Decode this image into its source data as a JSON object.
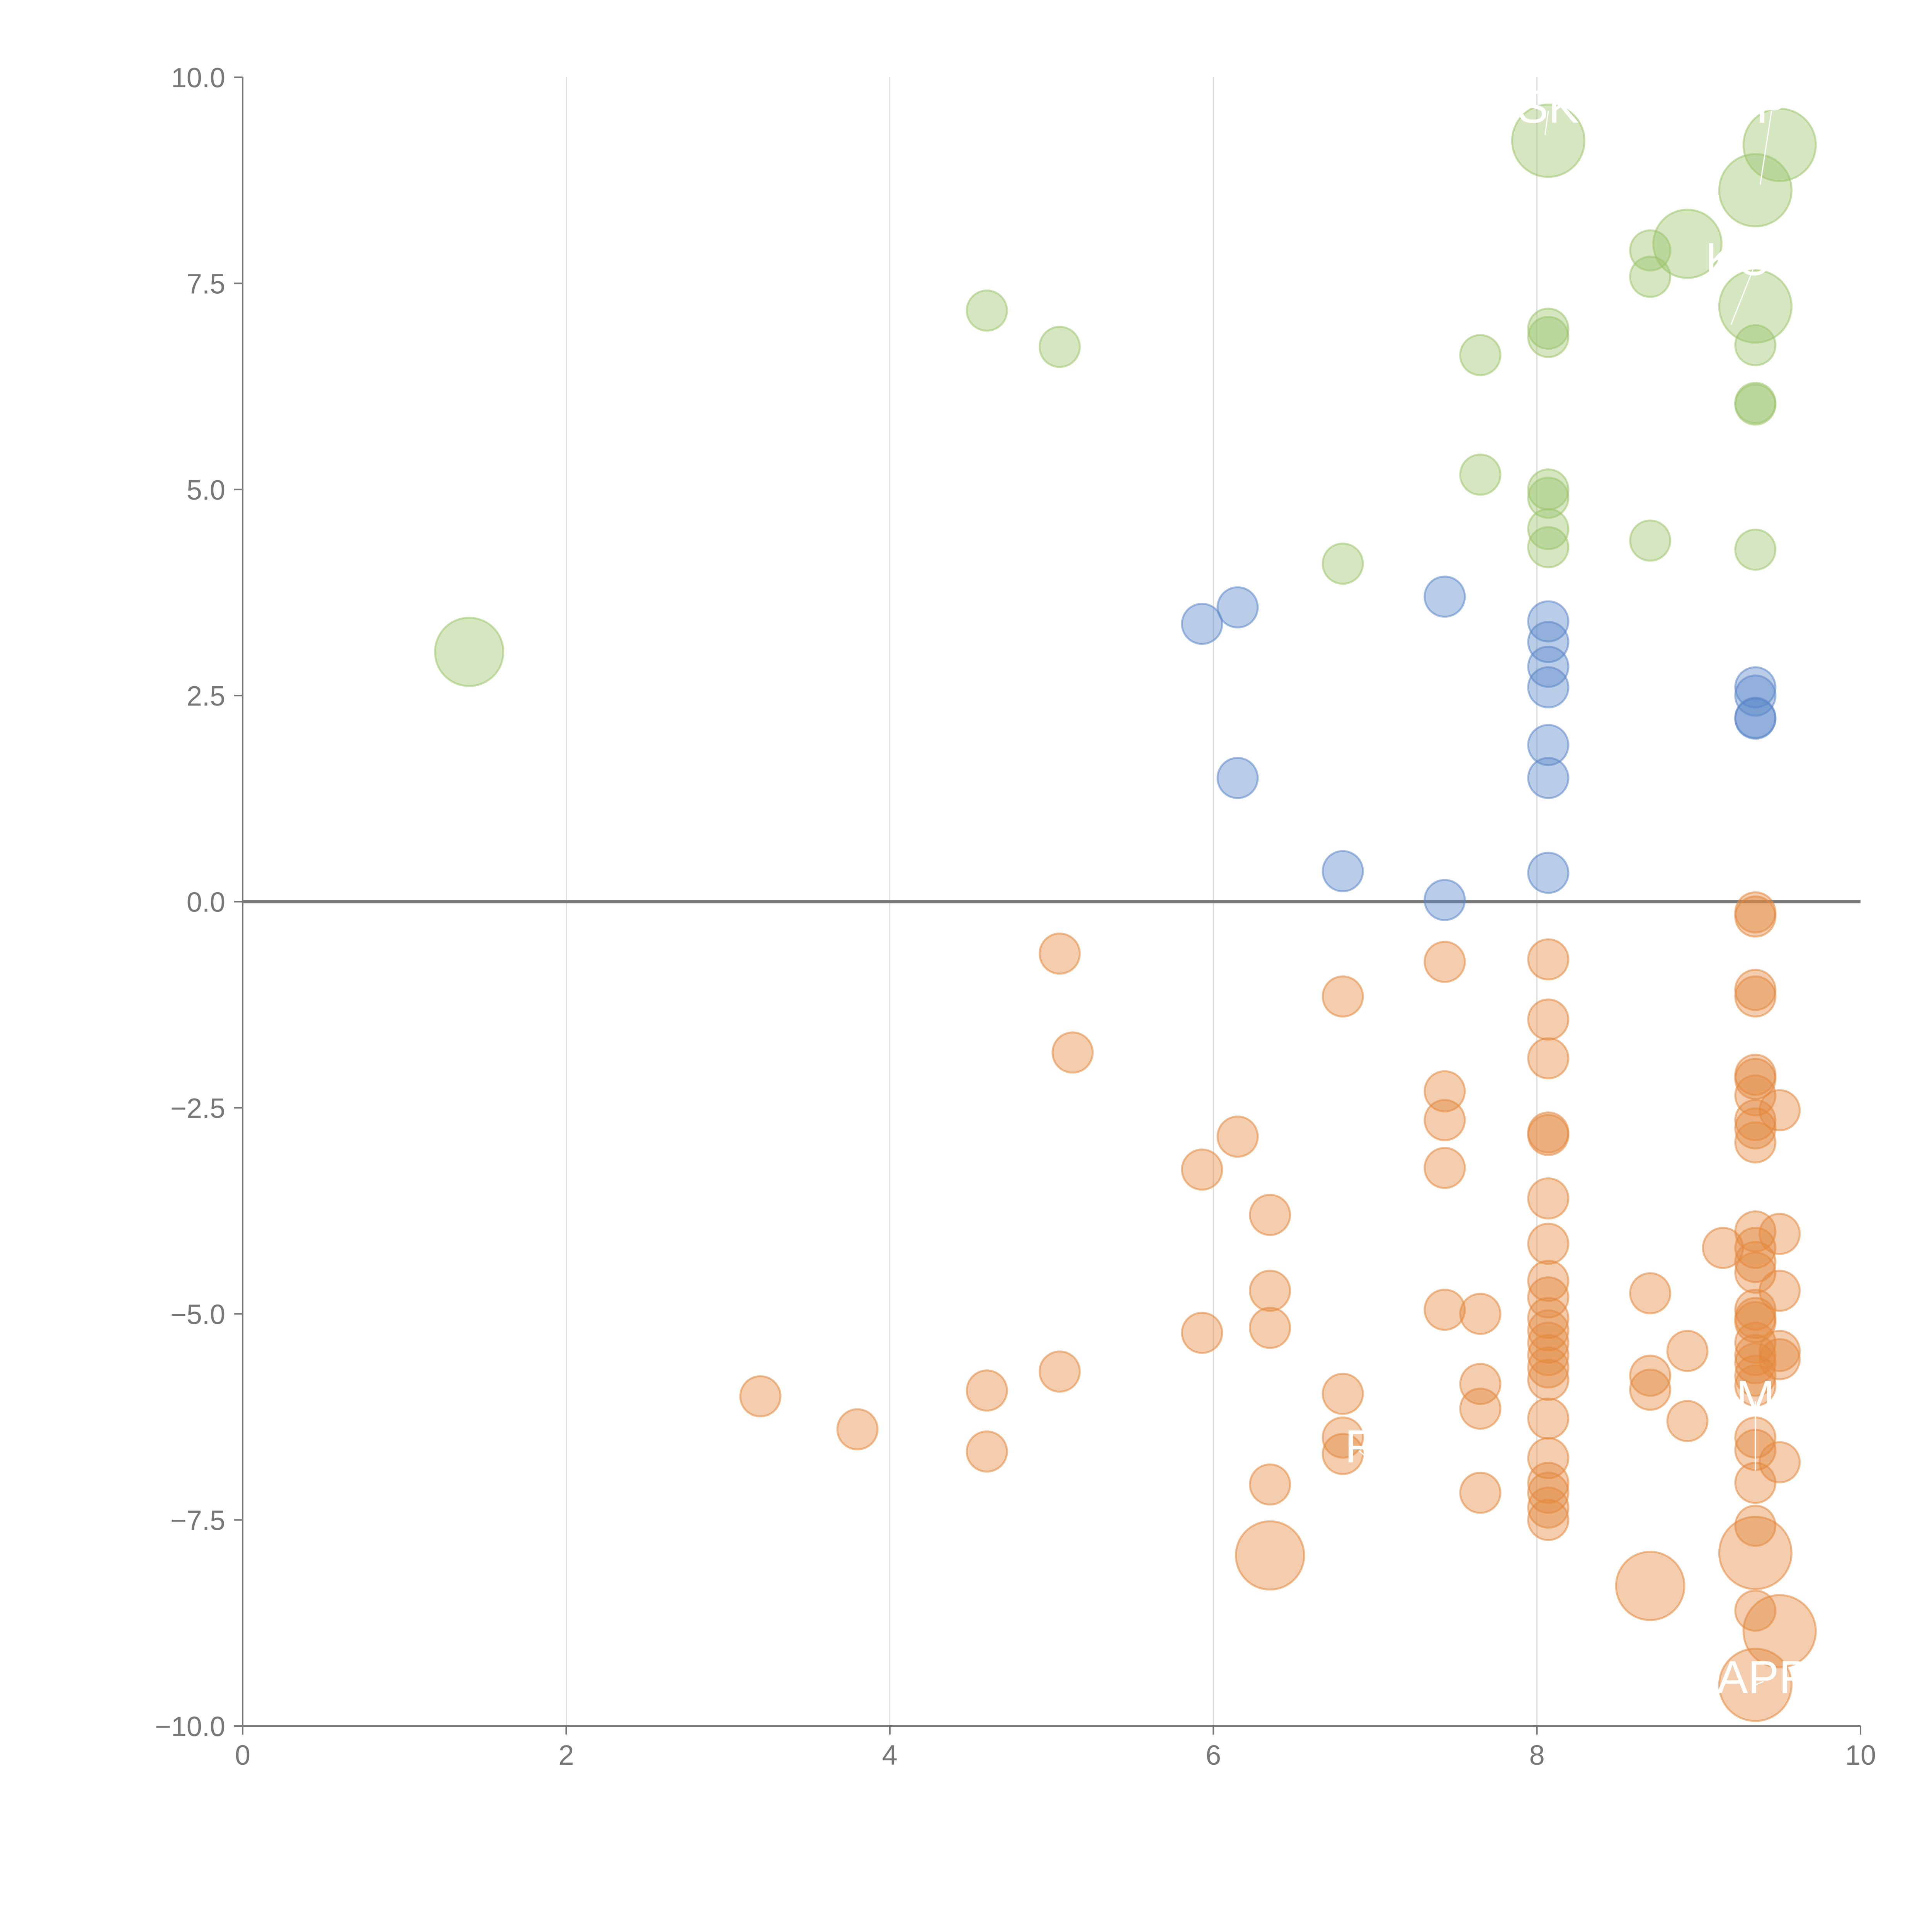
{
  "chart_data": {
    "type": "scatter",
    "title": "",
    "xlabel": "",
    "ylabel": "",
    "xlim": [
      0,
      10
    ],
    "ylim": [
      -10,
      10
    ],
    "x_ticks": [
      0,
      2,
      4,
      6,
      8,
      10
    ],
    "y_ticks": [
      10,
      7.5,
      5,
      2.5,
      0,
      -2.5,
      -5,
      -7.5,
      -10
    ],
    "x_tick_labels": [
      "0",
      "2",
      "4",
      "6",
      "8",
      "10"
    ],
    "y_tick_labels": [
      "10.0",
      "7.5",
      "5.0",
      "2.5",
      "0.0",
      "−2.5",
      "−5.0",
      "−7.5",
      "−10.0"
    ],
    "grid": "vertical lines at x ticks",
    "reference_line": {
      "y": 0
    },
    "colors": {
      "green": "#9cc46b",
      "blue": "#5b87c8",
      "orange": "#e3883e",
      "axis": "#777777",
      "grid": "#dddddd"
    },
    "series": [
      {
        "name": "green",
        "color": "#9cc46b",
        "points": [
          [
            1.4,
            3.03,
            1.7
          ],
          [
            4.6,
            7.17,
            1
          ],
          [
            5.05,
            6.73,
            1
          ],
          [
            6.8,
            4.1,
            1
          ],
          [
            7.65,
            6.63,
            1
          ],
          [
            7.65,
            5.18,
            1
          ],
          [
            8.07,
            9.23,
            1.8
          ],
          [
            8.07,
            6.95,
            1
          ],
          [
            8.07,
            6.85,
            1
          ],
          [
            8.07,
            5.0,
            1
          ],
          [
            8.07,
            4.9,
            1
          ],
          [
            8.07,
            4.52,
            1
          ],
          [
            8.07,
            4.3,
            1
          ],
          [
            8.7,
            7.9,
            1
          ],
          [
            8.7,
            7.58,
            1
          ],
          [
            8.7,
            4.38,
            1
          ],
          [
            8.93,
            7.98,
            1.7
          ],
          [
            9.35,
            8.63,
            1.8
          ],
          [
            9.35,
            7.22,
            1.8
          ],
          [
            9.35,
            6.75,
            1
          ],
          [
            9.35,
            6.05,
            1
          ],
          [
            9.35,
            6.03,
            1
          ],
          [
            9.35,
            4.27,
            1
          ],
          [
            9.5,
            9.18,
            1.8
          ]
        ]
      },
      {
        "name": "blue",
        "color": "#5b87c8",
        "points": [
          [
            5.93,
            3.37,
            1
          ],
          [
            6.15,
            3.57,
            1
          ],
          [
            6.15,
            1.5,
            1
          ],
          [
            6.8,
            0.37,
            1
          ],
          [
            7.43,
            3.7,
            1
          ],
          [
            7.43,
            0.02,
            1
          ],
          [
            8.07,
            3.4,
            1
          ],
          [
            8.07,
            3.15,
            1
          ],
          [
            8.07,
            2.85,
            1
          ],
          [
            8.07,
            2.6,
            1
          ],
          [
            8.07,
            1.9,
            1
          ],
          [
            8.07,
            1.5,
            1
          ],
          [
            8.07,
            0.35,
            1
          ],
          [
            9.35,
            2.6,
            1
          ],
          [
            9.35,
            2.5,
            1
          ],
          [
            9.35,
            2.23,
            1
          ],
          [
            9.35,
            2.22,
            1
          ]
        ]
      },
      {
        "name": "orange",
        "color": "#e3883e",
        "points": [
          [
            3.2,
            -6.0,
            1
          ],
          [
            3.8,
            -6.4,
            1
          ],
          [
            4.6,
            -5.93,
            1
          ],
          [
            4.6,
            -6.67,
            1
          ],
          [
            5.05,
            -0.63,
            1
          ],
          [
            5.05,
            -5.7,
            1
          ],
          [
            5.13,
            -1.83,
            1
          ],
          [
            5.93,
            -3.25,
            1
          ],
          [
            5.93,
            -5.23,
            1
          ],
          [
            6.15,
            -2.85,
            1
          ],
          [
            6.35,
            -3.8,
            1
          ],
          [
            6.35,
            -4.72,
            1
          ],
          [
            6.35,
            -5.17,
            1
          ],
          [
            6.35,
            -7.07,
            1
          ],
          [
            6.35,
            -7.93,
            1.7
          ],
          [
            6.8,
            -1.15,
            1
          ],
          [
            6.8,
            -5.97,
            1
          ],
          [
            6.8,
            -6.5,
            1
          ],
          [
            6.8,
            -6.7,
            1
          ],
          [
            7.43,
            -0.73,
            1
          ],
          [
            7.43,
            -2.3,
            1
          ],
          [
            7.43,
            -2.65,
            1
          ],
          [
            7.43,
            -3.23,
            1
          ],
          [
            7.43,
            -4.95,
            1
          ],
          [
            7.65,
            -5.0,
            1
          ],
          [
            7.65,
            -5.85,
            1
          ],
          [
            7.65,
            -6.15,
            1
          ],
          [
            7.65,
            -7.17,
            1
          ],
          [
            8.07,
            -0.7,
            1
          ],
          [
            8.07,
            -1.43,
            1
          ],
          [
            8.07,
            -1.9,
            1
          ],
          [
            8.07,
            -2.8,
            1
          ],
          [
            8.07,
            -2.83,
            1
          ],
          [
            8.07,
            -3.6,
            1
          ],
          [
            8.07,
            -4.15,
            1
          ],
          [
            8.07,
            -4.6,
            1
          ],
          [
            8.07,
            -4.8,
            1
          ],
          [
            8.07,
            -5.05,
            1
          ],
          [
            8.07,
            -5.2,
            1
          ],
          [
            8.07,
            -5.35,
            1
          ],
          [
            8.07,
            -5.5,
            1
          ],
          [
            8.07,
            -5.65,
            1
          ],
          [
            8.07,
            -5.8,
            1
          ],
          [
            8.07,
            -6.27,
            1
          ],
          [
            8.07,
            -6.75,
            1
          ],
          [
            8.07,
            -7.05,
            1
          ],
          [
            8.07,
            -7.17,
            1
          ],
          [
            8.07,
            -7.35,
            1
          ],
          [
            8.07,
            -7.5,
            1
          ],
          [
            8.7,
            -4.75,
            1
          ],
          [
            8.7,
            -5.75,
            1
          ],
          [
            8.7,
            -5.92,
            1
          ],
          [
            8.7,
            -8.3,
            1.7
          ],
          [
            8.93,
            -5.45,
            1
          ],
          [
            8.93,
            -6.3,
            1
          ],
          [
            9.15,
            -4.2,
            1
          ],
          [
            9.35,
            -0.13,
            1
          ],
          [
            9.35,
            -0.18,
            1
          ],
          [
            9.35,
            -1.07,
            1
          ],
          [
            9.35,
            -1.15,
            1
          ],
          [
            9.35,
            -2.1,
            1
          ],
          [
            9.35,
            -2.15,
            1
          ],
          [
            9.35,
            -2.35,
            1
          ],
          [
            9.35,
            -2.65,
            1
          ],
          [
            9.35,
            -2.75,
            1
          ],
          [
            9.35,
            -2.92,
            1
          ],
          [
            9.35,
            -4.0,
            1
          ],
          [
            9.35,
            -4.2,
            1
          ],
          [
            9.35,
            -4.37,
            1
          ],
          [
            9.35,
            -4.5,
            1
          ],
          [
            9.35,
            -4.95,
            1
          ],
          [
            9.35,
            -5.05,
            1
          ],
          [
            9.35,
            -5.1,
            1
          ],
          [
            9.35,
            -5.35,
            1
          ],
          [
            9.35,
            -5.5,
            1
          ],
          [
            9.35,
            -5.6,
            1
          ],
          [
            9.35,
            -5.75,
            1
          ],
          [
            9.35,
            -5.87,
            1
          ],
          [
            9.35,
            -6.5,
            1
          ],
          [
            9.35,
            -6.65,
            1
          ],
          [
            9.35,
            -7.05,
            1
          ],
          [
            9.35,
            -7.57,
            1
          ],
          [
            9.35,
            -7.9,
            1.8
          ],
          [
            9.35,
            -8.6,
            1
          ],
          [
            9.35,
            -9.5,
            1.8
          ],
          [
            9.5,
            -2.53,
            1
          ],
          [
            9.5,
            -4.03,
            1
          ],
          [
            9.5,
            -4.72,
            1
          ],
          [
            9.5,
            -5.45,
            1
          ],
          [
            9.5,
            -5.55,
            1
          ],
          [
            9.5,
            -6.8,
            1
          ],
          [
            9.5,
            -8.85,
            1.8
          ]
        ]
      }
    ],
    "annotations": [
      {
        "text": "SK",
        "x": 8.07,
        "y": 9.45,
        "anchor_x": 8.05,
        "anchor_y": 9.3
      },
      {
        "text": "P",
        "x": 9.45,
        "y": 9.45,
        "anchor_x": 9.38,
        "anchor_y": 8.7
      },
      {
        "text": "KOR",
        "x": 9.35,
        "y": 7.6,
        "anchor_x": 9.2,
        "anchor_y": 7.0
      },
      {
        "text": "F",
        "x": 6.9,
        "y": -6.8,
        "anchor_x": 7.1,
        "anchor_y": -7.0
      },
      {
        "text": "M",
        "x": 9.35,
        "y": -6.2,
        "anchor_x": 9.35,
        "anchor_y": -6.9
      },
      {
        "text": "APP",
        "x": 9.4,
        "y": -9.6,
        "anchor_x": 9.35,
        "anchor_y": -9.5
      }
    ]
  }
}
